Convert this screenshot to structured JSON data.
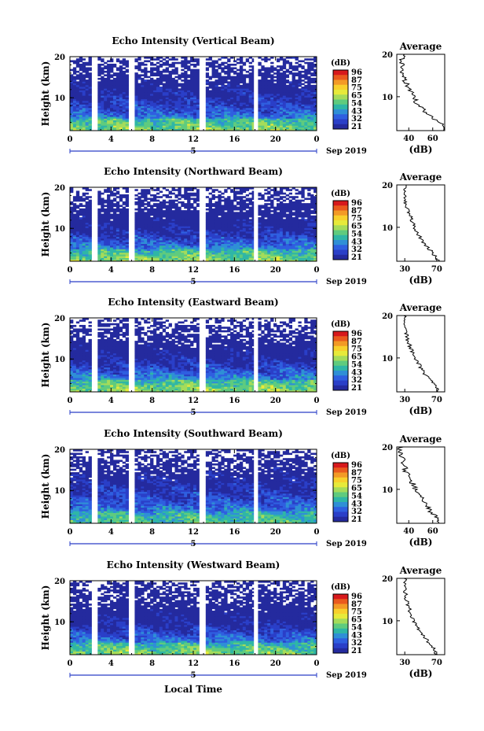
{
  "colorbar": {
    "unit": "(dB)",
    "ticks": [
      "96",
      "87",
      "75",
      "65",
      "54",
      "43",
      "32",
      "21"
    ],
    "colors": [
      "#d7191c",
      "#ea5a1e",
      "#f39a26",
      "#f8d02c",
      "#e7ea3a",
      "#a5dc5a",
      "#5fcb7e",
      "#2fb6a6",
      "#2f8fd6",
      "#2f5fe0",
      "#2a3fc8",
      "#242a9e"
    ]
  },
  "date_label": "Sep 2019",
  "xaxis": {
    "label": "Local Time",
    "ticks": [
      "0",
      "4",
      "8",
      "12",
      "16",
      "20",
      "0"
    ],
    "day_label": "5"
  },
  "yaxis": {
    "label": "Height (km)",
    "ticks": [
      "20",
      "10"
    ]
  },
  "avg_title": "Average",
  "avg_unit": "(dB)",
  "panels": [
    {
      "title": "Echo Intensity (Vertical Beam)",
      "profile_ticks": [
        "40",
        "60"
      ],
      "cb_ticks": [
        "96",
        "87",
        "75",
        "65",
        "54",
        "43",
        "32",
        "21"
      ]
    },
    {
      "title": "Echo Intensity (Northward Beam)",
      "profile_ticks": [
        "30",
        "70"
      ],
      "cb_ticks": [
        "96",
        "87",
        "75",
        "65",
        "54",
        "43",
        "32",
        "21"
      ]
    },
    {
      "title": "Echo Intensity (Eastward Beam)",
      "profile_ticks": [
        "30",
        "70"
      ],
      "cb_ticks": [
        "96",
        "87",
        "75",
        "65",
        "54",
        "43",
        "32",
        "21"
      ]
    },
    {
      "title": "Echo Intensity (Southward Beam)",
      "profile_ticks": [
        "40",
        "60"
      ],
      "cb_ticks": [
        "96",
        "87",
        "75",
        "65",
        "54",
        "43",
        "32",
        "21"
      ]
    },
    {
      "title": "Echo Intensity (Westward Beam)",
      "profile_ticks": [
        "30",
        "70"
      ],
      "cb_ticks": [
        "96",
        "87",
        "75",
        "65",
        "54",
        "43",
        "32",
        "21"
      ]
    }
  ],
  "chart_data": {
    "type": "heatmap",
    "x_unit": "Local Time (hours)",
    "x_range": [
      0,
      24
    ],
    "y_unit": "Height (km)",
    "y_range": [
      2,
      20
    ],
    "value_unit": "dB",
    "value_range": [
      21,
      96
    ],
    "data_gaps_hours": [
      [
        2.2,
        2.6
      ],
      [
        5.8,
        6.2
      ],
      [
        12.6,
        13.2
      ],
      [
        17.9,
        18.2
      ]
    ],
    "series": [
      {
        "name": "Vertical Beam",
        "average_profile": {
          "height_km": [
            2,
            4,
            6,
            8,
            10,
            12,
            14,
            16,
            18,
            20
          ],
          "echo_db": [
            70,
            66,
            55,
            48,
            44,
            40,
            36,
            34,
            34,
            36
          ]
        }
      },
      {
        "name": "Northward Beam",
        "average_profile": {
          "height_km": [
            2,
            4,
            6,
            8,
            10,
            12,
            14,
            16,
            18,
            20
          ],
          "echo_db": [
            72,
            65,
            55,
            48,
            42,
            38,
            34,
            31,
            30,
            31
          ]
        }
      },
      {
        "name": "Eastward Beam",
        "average_profile": {
          "height_km": [
            2,
            4,
            6,
            8,
            10,
            12,
            14,
            16,
            18,
            20
          ],
          "echo_db": [
            72,
            66,
            56,
            49,
            43,
            38,
            34,
            31,
            30,
            31
          ]
        }
      },
      {
        "name": "Southward Beam",
        "average_profile": {
          "height_km": [
            2,
            4,
            6,
            8,
            10,
            12,
            14,
            16,
            18,
            20
          ],
          "echo_db": [
            65,
            61,
            55,
            50,
            46,
            42,
            38,
            36,
            34,
            33
          ]
        }
      },
      {
        "name": "Westward Beam",
        "average_profile": {
          "height_km": [
            2,
            4,
            6,
            8,
            10,
            12,
            14,
            16,
            18,
            20
          ],
          "echo_db": [
            70,
            64,
            55,
            47,
            41,
            37,
            33,
            31,
            30,
            31
          ]
        }
      }
    ]
  }
}
